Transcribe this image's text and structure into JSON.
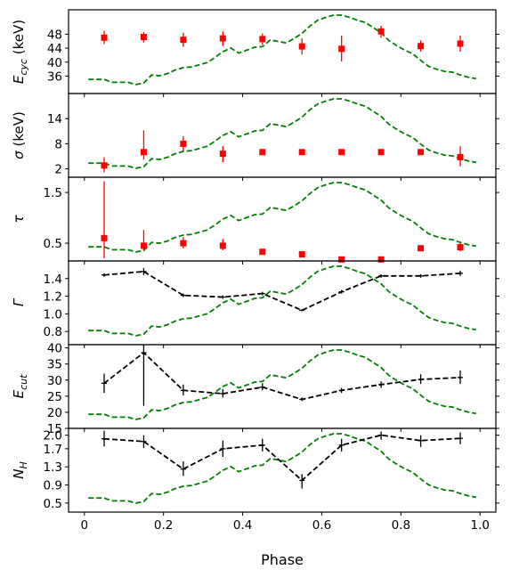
{
  "colors": {
    "profile": "#008000",
    "points": "#ff0000",
    "fit": "#000000",
    "axis": "#000000"
  },
  "chart_data": {
    "type": "scatter",
    "xlabel": "Phase",
    "xlim": [
      -0.04,
      1.04
    ],
    "xticks": [
      0,
      0.2,
      0.4,
      0.6,
      0.8,
      1.0
    ],
    "xtick_labels": [
      "0",
      "0.2",
      "0.4",
      "0.6",
      "0.8",
      "1.0"
    ],
    "pulse_profile": {
      "x": [
        0.01,
        0.03,
        0.05,
        0.07,
        0.09,
        0.11,
        0.13,
        0.15,
        0.17,
        0.19,
        0.21,
        0.23,
        0.25,
        0.27,
        0.29,
        0.31,
        0.33,
        0.35,
        0.37,
        0.39,
        0.41,
        0.43,
        0.45,
        0.47,
        0.49,
        0.51,
        0.53,
        0.55,
        0.57,
        0.59,
        0.61,
        0.63,
        0.65,
        0.67,
        0.69,
        0.71,
        0.73,
        0.75,
        0.77,
        0.79,
        0.81,
        0.83,
        0.85,
        0.87,
        0.89,
        0.91,
        0.93,
        0.95,
        0.97,
        0.99
      ],
      "y": [
        0.12,
        0.12,
        0.12,
        0.08,
        0.08,
        0.08,
        0.05,
        0.07,
        0.18,
        0.17,
        0.2,
        0.25,
        0.28,
        0.29,
        0.32,
        0.35,
        0.42,
        0.5,
        0.55,
        0.48,
        0.52,
        0.56,
        0.57,
        0.66,
        0.64,
        0.62,
        0.68,
        0.75,
        0.85,
        0.93,
        0.97,
        1.0,
        1.0,
        0.97,
        0.93,
        0.9,
        0.83,
        0.76,
        0.65,
        0.58,
        0.52,
        0.47,
        0.38,
        0.3,
        0.26,
        0.23,
        0.22,
        0.18,
        0.15,
        0.13
      ]
    },
    "panels": [
      {
        "ylabel": "E_cyc (keV)",
        "ylim": [
          31,
          55
        ],
        "yticks": [
          36,
          40,
          44,
          48
        ],
        "ytick_labels": [
          "36",
          "40",
          "44",
          "48"
        ],
        "style": "points",
        "points": [
          {
            "x": 0.05,
            "y": 47.0,
            "lo": 45.2,
            "hi": 49.0
          },
          {
            "x": 0.15,
            "y": 47.2,
            "lo": 45.6,
            "hi": 48.6
          },
          {
            "x": 0.25,
            "y": 46.4,
            "lo": 44.4,
            "hi": 48.4
          },
          {
            "x": 0.35,
            "y": 46.8,
            "lo": 44.6,
            "hi": 48.8
          },
          {
            "x": 0.45,
            "y": 46.6,
            "lo": 45.0,
            "hi": 48.2
          },
          {
            "x": 0.55,
            "y": 44.5,
            "lo": 42.2,
            "hi": 46.8
          },
          {
            "x": 0.65,
            "y": 43.8,
            "lo": 40.2,
            "hi": 47.6
          },
          {
            "x": 0.75,
            "y": 48.8,
            "lo": 47.0,
            "hi": 50.4
          },
          {
            "x": 0.85,
            "y": 44.6,
            "lo": 43.0,
            "hi": 46.2
          },
          {
            "x": 0.95,
            "y": 45.3,
            "lo": 43.0,
            "hi": 47.6
          }
        ]
      },
      {
        "ylabel": "σ (keV)",
        "ylim": [
          0,
          20
        ],
        "yticks": [
          2,
          8,
          14
        ],
        "ytick_labels": [
          "2",
          "8",
          "14"
        ],
        "style": "points",
        "points": [
          {
            "x": 0.05,
            "y": 2.8,
            "lo": 1.2,
            "hi": 4.8
          },
          {
            "x": 0.15,
            "y": 6.0,
            "lo": 4.2,
            "hi": 11.2
          },
          {
            "x": 0.25,
            "y": 8.0,
            "lo": 6.2,
            "hi": 9.8
          },
          {
            "x": 0.35,
            "y": 5.6,
            "lo": 3.6,
            "hi": 7.4
          },
          {
            "x": 0.45,
            "y": 6.0,
            "lo": 5.6,
            "hi": 6.4
          },
          {
            "x": 0.55,
            "y": 6.0,
            "lo": 5.6,
            "hi": 6.4
          },
          {
            "x": 0.65,
            "y": 6.0,
            "lo": 5.6,
            "hi": 6.4
          },
          {
            "x": 0.75,
            "y": 6.0,
            "lo": 5.6,
            "hi": 6.4
          },
          {
            "x": 0.85,
            "y": 6.0,
            "lo": 5.5,
            "hi": 6.5
          },
          {
            "x": 0.95,
            "y": 4.8,
            "lo": 2.6,
            "hi": 7.4
          }
        ]
      },
      {
        "ylabel": "τ",
        "ylim": [
          0.15,
          1.8
        ],
        "yticks": [
          0.5,
          1.5
        ],
        "ytick_labels": [
          "0.5",
          "1.5"
        ],
        "style": "points",
        "points": [
          {
            "x": 0.05,
            "y": 0.6,
            "lo": 0.2,
            "hi": 1.72
          },
          {
            "x": 0.15,
            "y": 0.45,
            "lo": 0.35,
            "hi": 0.76
          },
          {
            "x": 0.25,
            "y": 0.5,
            "lo": 0.4,
            "hi": 0.62
          },
          {
            "x": 0.35,
            "y": 0.45,
            "lo": 0.36,
            "hi": 0.58
          },
          {
            "x": 0.45,
            "y": 0.33,
            "lo": 0.3,
            "hi": 0.36
          },
          {
            "x": 0.55,
            "y": 0.28,
            "lo": 0.25,
            "hi": 0.31
          },
          {
            "x": 0.65,
            "y": 0.18,
            "lo": 0.16,
            "hi": 0.2
          },
          {
            "x": 0.75,
            "y": 0.18,
            "lo": 0.16,
            "hi": 0.22
          },
          {
            "x": 0.85,
            "y": 0.4,
            "lo": 0.36,
            "hi": 0.44
          },
          {
            "x": 0.95,
            "y": 0.42,
            "lo": 0.34,
            "hi": 0.5
          }
        ]
      },
      {
        "ylabel": "Γ",
        "ylim": [
          0.65,
          1.6
        ],
        "yticks": [
          0.8,
          1.0,
          1.2,
          1.4
        ],
        "ytick_labels": [
          "0.8",
          "1.0",
          "1.2",
          "1.4"
        ],
        "style": "line",
        "points": [
          {
            "x": 0.05,
            "y": 1.44,
            "lo": 1.42,
            "hi": 1.46
          },
          {
            "x": 0.15,
            "y": 1.48,
            "lo": 1.44,
            "hi": 1.52
          },
          {
            "x": 0.25,
            "y": 1.21,
            "lo": 1.19,
            "hi": 1.23
          },
          {
            "x": 0.35,
            "y": 1.19,
            "lo": 1.17,
            "hi": 1.21
          },
          {
            "x": 0.45,
            "y": 1.23,
            "lo": 1.21,
            "hi": 1.25
          },
          {
            "x": 0.55,
            "y": 1.04,
            "lo": 1.03,
            "hi": 1.05
          },
          {
            "x": 0.65,
            "y": 1.25,
            "lo": 1.23,
            "hi": 1.27
          },
          {
            "x": 0.75,
            "y": 1.43,
            "lo": 1.41,
            "hi": 1.45
          },
          {
            "x": 0.85,
            "y": 1.43,
            "lo": 1.41,
            "hi": 1.45
          },
          {
            "x": 0.95,
            "y": 1.46,
            "lo": 1.43,
            "hi": 1.49
          }
        ]
      },
      {
        "ylabel": "E_cut",
        "ylim": [
          15,
          41
        ],
        "yticks": [
          15,
          20,
          25,
          30,
          35,
          40
        ],
        "ytick_labels": [
          "15",
          "20",
          "25",
          "30",
          "35",
          "40"
        ],
        "style": "line",
        "points": [
          {
            "x": 0.05,
            "y": 29.0,
            "lo": 26.0,
            "hi": 32.0
          },
          {
            "x": 0.15,
            "y": 38.5,
            "lo": 22.0,
            "hi": 41.0
          },
          {
            "x": 0.25,
            "y": 26.8,
            "lo": 25.2,
            "hi": 28.6
          },
          {
            "x": 0.35,
            "y": 25.8,
            "lo": 24.6,
            "hi": 27.2
          },
          {
            "x": 0.45,
            "y": 27.8,
            "lo": 26.8,
            "hi": 29.0
          },
          {
            "x": 0.55,
            "y": 24.0,
            "lo": 23.5,
            "hi": 24.6
          },
          {
            "x": 0.65,
            "y": 26.8,
            "lo": 26.0,
            "hi": 27.6
          },
          {
            "x": 0.75,
            "y": 28.6,
            "lo": 27.6,
            "hi": 29.6
          },
          {
            "x": 0.85,
            "y": 30.2,
            "lo": 28.8,
            "hi": 31.8
          },
          {
            "x": 0.95,
            "y": 30.8,
            "lo": 28.8,
            "hi": 33.0
          }
        ]
      },
      {
        "ylabel": "N_H",
        "ylim": [
          0.3,
          2.15
        ],
        "yticks": [
          0.5,
          0.9,
          1.3,
          1.7,
          2.0
        ],
        "ytick_labels": [
          "0.5",
          "0.9",
          "1.3",
          "1.7",
          "2.0"
        ],
        "style": "line",
        "points": [
          {
            "x": 0.05,
            "y": 1.92,
            "lo": 1.75,
            "hi": 2.1
          },
          {
            "x": 0.15,
            "y": 1.86,
            "lo": 1.72,
            "hi": 2.0
          },
          {
            "x": 0.25,
            "y": 1.25,
            "lo": 1.1,
            "hi": 1.42
          },
          {
            "x": 0.35,
            "y": 1.7,
            "lo": 1.52,
            "hi": 1.88
          },
          {
            "x": 0.45,
            "y": 1.78,
            "lo": 1.64,
            "hi": 1.92
          },
          {
            "x": 0.55,
            "y": 1.0,
            "lo": 0.82,
            "hi": 1.14
          },
          {
            "x": 0.65,
            "y": 1.78,
            "lo": 1.64,
            "hi": 1.92
          },
          {
            "x": 0.75,
            "y": 2.0,
            "lo": 1.9,
            "hi": 2.08
          },
          {
            "x": 0.85,
            "y": 1.88,
            "lo": 1.74,
            "hi": 2.0
          },
          {
            "x": 0.95,
            "y": 1.93,
            "lo": 1.8,
            "hi": 2.06
          }
        ]
      }
    ]
  }
}
